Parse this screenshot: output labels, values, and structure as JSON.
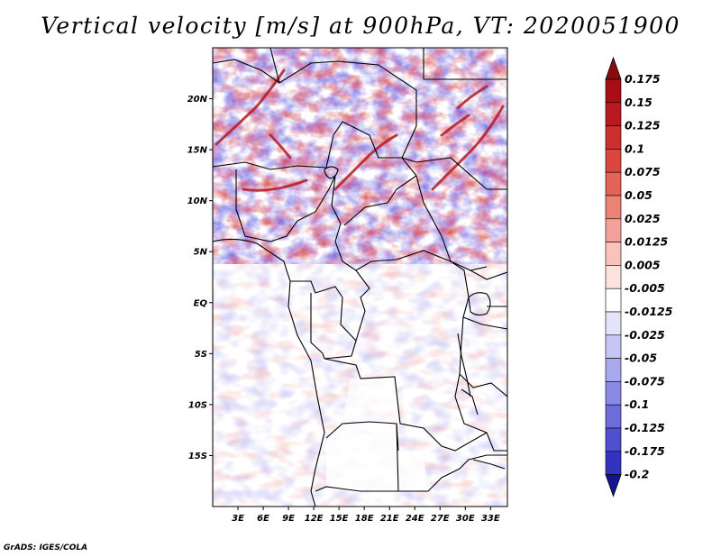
{
  "title": "Vertical velocity [m/s] at 900hPa, VT: 2020051900",
  "credit": "GrADS: IGES/COLA",
  "map": {
    "lon_range": [
      0,
      35
    ],
    "lat_range": [
      -20,
      25
    ],
    "lat_ticks": [
      {
        "lat": 20,
        "label": "20N"
      },
      {
        "lat": 15,
        "label": "15N"
      },
      {
        "lat": 10,
        "label": "10N"
      },
      {
        "lat": 5,
        "label": "5N"
      },
      {
        "lat": 0,
        "label": "EQ"
      },
      {
        "lat": -5,
        "label": "5S"
      },
      {
        "lat": -10,
        "label": "10S"
      },
      {
        "lat": -15,
        "label": "15S"
      }
    ],
    "lon_ticks": [
      {
        "lon": 3,
        "label": "3E"
      },
      {
        "lon": 6,
        "label": "6E"
      },
      {
        "lon": 9,
        "label": "9E"
      },
      {
        "lon": 12,
        "label": "12E"
      },
      {
        "lon": 15,
        "label": "15E"
      },
      {
        "lon": 18,
        "label": "18E"
      },
      {
        "lon": 21,
        "label": "21E"
      },
      {
        "lon": 24,
        "label": "24E"
      },
      {
        "lon": 27,
        "label": "27E"
      },
      {
        "lon": 30,
        "label": "30E"
      },
      {
        "lon": 33,
        "label": "33E"
      }
    ]
  },
  "colorbar": {
    "levels": [
      {
        "label": "0.175",
        "color": "#a50f15"
      },
      {
        "label": "0.15",
        "color": "#b81a22"
      },
      {
        "label": "0.125",
        "color": "#c9302f"
      },
      {
        "label": "0.1",
        "color": "#d9473f"
      },
      {
        "label": "0.075",
        "color": "#e36358"
      },
      {
        "label": "0.05",
        "color": "#ec8274"
      },
      {
        "label": "0.025",
        "color": "#f4a299"
      },
      {
        "label": "0.0125",
        "color": "#f9c3bc"
      },
      {
        "label": "0.005",
        "color": "#fde3df"
      },
      {
        "label": "-0.005",
        "color": "#ffffff"
      },
      {
        "label": "-0.0125",
        "color": "#e3e3fc"
      },
      {
        "label": "-0.025",
        "color": "#c6c6f6"
      },
      {
        "label": "-0.05",
        "color": "#a8a8ef"
      },
      {
        "label": "-0.075",
        "color": "#8a8ae6"
      },
      {
        "label": "-0.1",
        "color": "#6c6cdc"
      },
      {
        "label": "-0.125",
        "color": "#4f4fd0"
      },
      {
        "label": "-0.175",
        "color": "#3333bf"
      },
      {
        "label": "-0.2",
        "color": "#1d1daa"
      }
    ],
    "top_color": "#8b0a0a",
    "bottom_color": "#14148f"
  }
}
